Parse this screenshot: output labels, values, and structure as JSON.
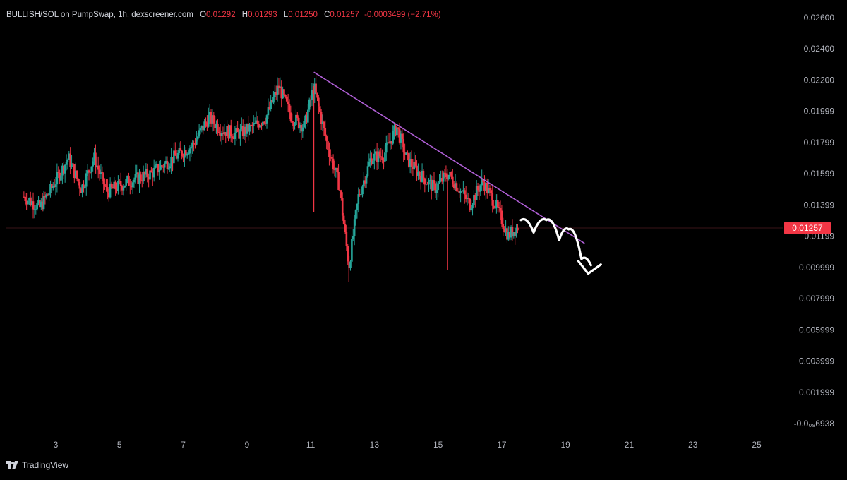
{
  "header": {
    "pair_info": "BULLISH/SOL on PumpSwap, 1h, dexscreener.com",
    "open_label": "O",
    "open": "0.01292",
    "high_label": "H",
    "high": "0.01293",
    "low_label": "L",
    "low": "0.01250",
    "close_label": "C",
    "close": "0.01257",
    "change": "-0.0003499 (−2.71%)"
  },
  "current_price_label": "0.01257",
  "branding": "TradingView",
  "colors": {
    "up": "#26a69a",
    "down": "#f23645",
    "background": "#000000",
    "trendline": "#b05fd6",
    "drawing": "#ffffff",
    "axis_text": "#b2b5be"
  },
  "chart_data": {
    "type": "candlestick",
    "timeframe": "1h",
    "x_tick_labels": [
      "3",
      "5",
      "7",
      "9",
      "11",
      "13",
      "15",
      "17",
      "19",
      "21",
      "23",
      "25"
    ],
    "y_tick_labels": [
      "0.02600",
      "0.02400",
      "0.02200",
      "0.01999",
      "0.01799",
      "0.01599",
      "0.01399",
      "0.01199",
      "0.009999",
      "0.007999",
      "0.005999",
      "0.003999",
      "0.001999",
      "-0.0₀₈6938"
    ],
    "ylim": [
      -6.938e-05,
      0.026
    ],
    "xlim": [
      1.8,
      25.8
    ],
    "current_price": 0.01257,
    "grid": false,
    "price_path_anchors": [
      [
        2.0,
        0.0145
      ],
      [
        2.5,
        0.0138
      ],
      [
        3.0,
        0.0155
      ],
      [
        3.4,
        0.017
      ],
      [
        3.8,
        0.015
      ],
      [
        4.2,
        0.017
      ],
      [
        4.6,
        0.0148
      ],
      [
        5.2,
        0.0154
      ],
      [
        6.0,
        0.016
      ],
      [
        6.7,
        0.017
      ],
      [
        7.3,
        0.0178
      ],
      [
        7.8,
        0.0196
      ],
      [
        8.2,
        0.0188
      ],
      [
        8.7,
        0.0185
      ],
      [
        9.2,
        0.019
      ],
      [
        9.6,
        0.0196
      ],
      [
        10.0,
        0.0216
      ],
      [
        10.4,
        0.0196
      ],
      [
        10.8,
        0.019
      ],
      [
        11.1,
        0.0216
      ],
      [
        11.5,
        0.018
      ],
      [
        11.9,
        0.0152
      ],
      [
        12.2,
        0.01
      ],
      [
        12.5,
        0.0145
      ],
      [
        12.9,
        0.017
      ],
      [
        13.3,
        0.0172
      ],
      [
        13.7,
        0.019
      ],
      [
        14.0,
        0.017
      ],
      [
        14.4,
        0.016
      ],
      [
        14.9,
        0.015
      ],
      [
        15.3,
        0.016
      ],
      [
        15.6,
        0.0152
      ],
      [
        16.0,
        0.014
      ],
      [
        16.4,
        0.0155
      ],
      [
        16.8,
        0.014
      ],
      [
        17.2,
        0.012
      ],
      [
        17.5,
        0.01257
      ]
    ],
    "spike_lows": [
      [
        11.1,
        0.0135
      ],
      [
        12.2,
        0.009
      ],
      [
        15.3,
        0.0098
      ]
    ],
    "trendline": {
      "start": [
        11.1,
        0.0225
      ],
      "end": [
        19.6,
        0.0115
      ]
    },
    "forecast_drawing": [
      [
        17.6,
        0.013
      ],
      [
        18.0,
        0.0122
      ],
      [
        18.4,
        0.013
      ],
      [
        18.8,
        0.0117
      ],
      [
        19.1,
        0.0124
      ],
      [
        19.5,
        0.0105
      ],
      [
        19.8,
        0.0101
      ]
    ]
  }
}
